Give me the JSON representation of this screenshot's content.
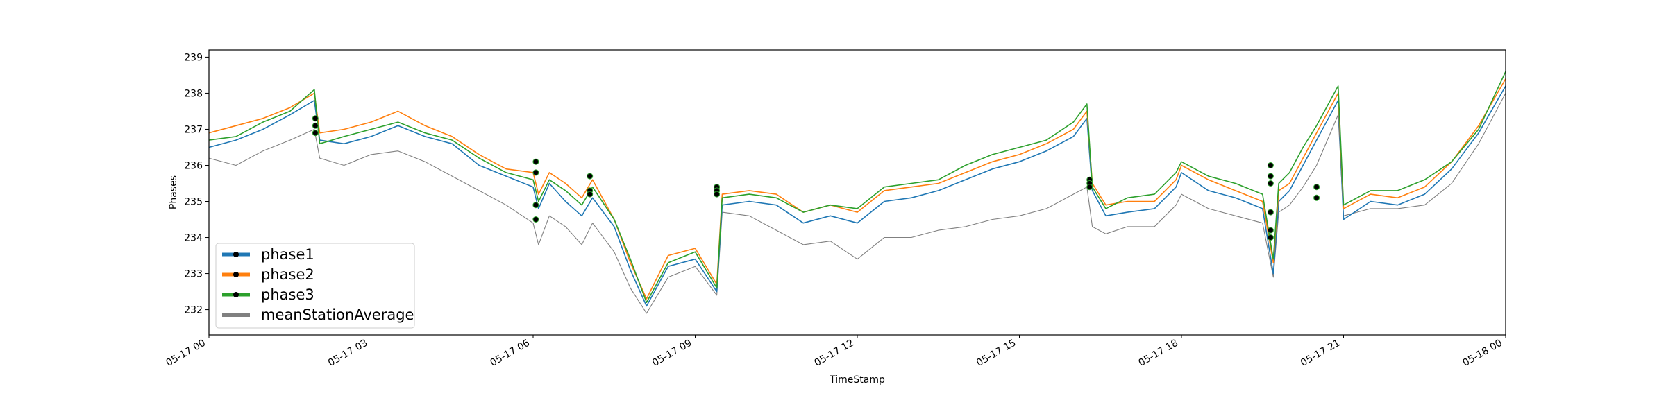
{
  "chart_data": {
    "type": "line",
    "xlabel": "TimeStamp",
    "ylabel": "Phases",
    "xlim": [
      0,
      24
    ],
    "ylim": [
      231.3,
      239.2
    ],
    "x_ticks": [
      {
        "value": 0,
        "label": "05-17 00"
      },
      {
        "value": 3,
        "label": "05-17 03"
      },
      {
        "value": 6,
        "label": "05-17 06"
      },
      {
        "value": 9,
        "label": "05-17 09"
      },
      {
        "value": 12,
        "label": "05-17 12"
      },
      {
        "value": 15,
        "label": "05-17 15"
      },
      {
        "value": 18,
        "label": "05-17 18"
      },
      {
        "value": 21,
        "label": "05-17 21"
      },
      {
        "value": 24,
        "label": "05-18 00"
      }
    ],
    "y_ticks": [
      232,
      233,
      234,
      235,
      236,
      237,
      238,
      239
    ],
    "grid": false,
    "legend_position": "lower-left",
    "colors": {
      "phase1": "#1f77b4",
      "phase2": "#ff7f0e",
      "phase3": "#2ca02c",
      "meanStationAverage": "#808080",
      "marker": "#000000"
    },
    "x": [
      0,
      0.5,
      1,
      1.5,
      1.95,
      2.05,
      2.5,
      3,
      3.5,
      4,
      4.5,
      5,
      5.5,
      6,
      6.1,
      6.3,
      6.6,
      6.9,
      7.1,
      7.5,
      7.8,
      8.1,
      8.5,
      9,
      9.4,
      9.5,
      10,
      10.5,
      11,
      11.5,
      12,
      12.5,
      13,
      13.5,
      14,
      14.5,
      15,
      15.5,
      16,
      16.25,
      16.35,
      16.6,
      17,
      17.5,
      17.9,
      18,
      18.5,
      19,
      19.5,
      19.7,
      19.8,
      20,
      20.25,
      20.5,
      20.9,
      21,
      21.5,
      22,
      22.5,
      23,
      23.5,
      24
    ],
    "series": [
      {
        "name": "phase1",
        "values": [
          236.5,
          236.7,
          237.0,
          237.4,
          237.8,
          236.7,
          236.6,
          236.8,
          237.1,
          236.8,
          236.6,
          236.0,
          235.7,
          235.4,
          234.8,
          235.5,
          235.0,
          234.6,
          235.1,
          234.3,
          233.1,
          232.1,
          233.2,
          233.4,
          232.5,
          234.9,
          235.0,
          234.9,
          234.4,
          234.6,
          234.4,
          235.0,
          235.1,
          235.3,
          235.6,
          235.9,
          236.1,
          236.4,
          236.8,
          237.3,
          235.3,
          234.6,
          234.7,
          234.8,
          235.4,
          235.8,
          235.3,
          235.1,
          234.8,
          233.0,
          235.0,
          235.3,
          236.0,
          236.7,
          237.8,
          234.5,
          235.0,
          234.9,
          235.2,
          235.9,
          236.9,
          238.2
        ]
      },
      {
        "name": "phase2",
        "values": [
          236.9,
          237.1,
          237.3,
          237.6,
          238.0,
          236.9,
          237.0,
          237.2,
          237.5,
          237.1,
          236.8,
          236.3,
          235.9,
          235.8,
          235.2,
          235.8,
          235.5,
          235.1,
          235.6,
          234.5,
          233.3,
          232.3,
          233.5,
          233.7,
          232.7,
          235.2,
          235.3,
          235.2,
          234.7,
          234.9,
          234.7,
          235.3,
          235.4,
          235.5,
          235.8,
          236.1,
          236.3,
          236.6,
          237.0,
          237.5,
          235.5,
          234.9,
          235.0,
          235.0,
          235.6,
          236.0,
          235.6,
          235.3,
          235.0,
          233.3,
          235.3,
          235.5,
          236.2,
          236.9,
          238.0,
          234.8,
          235.2,
          235.1,
          235.4,
          236.1,
          237.1,
          238.4
        ]
      },
      {
        "name": "phase3",
        "values": [
          236.7,
          236.8,
          237.2,
          237.5,
          238.1,
          236.6,
          236.8,
          237.0,
          237.2,
          236.9,
          236.7,
          236.2,
          235.8,
          235.6,
          235.0,
          235.6,
          235.3,
          234.9,
          235.4,
          234.5,
          233.4,
          232.2,
          233.3,
          233.6,
          232.6,
          235.1,
          235.2,
          235.1,
          234.7,
          234.9,
          234.8,
          235.4,
          235.5,
          235.6,
          236.0,
          236.3,
          236.5,
          236.7,
          237.2,
          237.7,
          235.4,
          234.8,
          235.1,
          235.2,
          235.8,
          236.1,
          235.7,
          235.5,
          235.2,
          233.4,
          235.5,
          235.8,
          236.5,
          237.1,
          238.2,
          234.9,
          235.3,
          235.3,
          235.6,
          236.1,
          237.0,
          238.6
        ]
      },
      {
        "name": "meanStationAverage",
        "values": [
          236.2,
          236.0,
          236.4,
          236.7,
          237.0,
          236.2,
          236.0,
          236.3,
          236.4,
          236.1,
          235.7,
          235.3,
          234.9,
          234.4,
          233.8,
          234.6,
          234.3,
          233.8,
          234.4,
          233.6,
          232.6,
          231.9,
          232.9,
          233.2,
          232.4,
          234.7,
          234.6,
          234.2,
          233.8,
          233.9,
          233.4,
          234.0,
          234.0,
          234.2,
          234.3,
          234.5,
          234.6,
          234.8,
          235.2,
          235.4,
          234.3,
          234.1,
          234.3,
          234.3,
          234.9,
          235.2,
          234.8,
          234.6,
          234.4,
          232.9,
          234.7,
          234.9,
          235.4,
          236.0,
          237.4,
          234.6,
          234.8,
          234.8,
          234.9,
          235.5,
          236.6,
          238.0
        ]
      }
    ],
    "markers": [
      {
        "x": 1.97,
        "y": 237.3
      },
      {
        "x": 1.97,
        "y": 237.1
      },
      {
        "x": 1.97,
        "y": 236.9
      },
      {
        "x": 6.05,
        "y": 236.1
      },
      {
        "x": 6.05,
        "y": 235.8
      },
      {
        "x": 6.05,
        "y": 234.9
      },
      {
        "x": 6.05,
        "y": 234.5
      },
      {
        "x": 7.05,
        "y": 235.7
      },
      {
        "x": 7.05,
        "y": 235.3
      },
      {
        "x": 7.05,
        "y": 235.2
      },
      {
        "x": 9.4,
        "y": 235.4
      },
      {
        "x": 9.4,
        "y": 235.3
      },
      {
        "x": 9.4,
        "y": 235.2
      },
      {
        "x": 16.3,
        "y": 235.6
      },
      {
        "x": 16.3,
        "y": 235.5
      },
      {
        "x": 16.3,
        "y": 235.4
      },
      {
        "x": 19.65,
        "y": 236.0
      },
      {
        "x": 19.65,
        "y": 235.7
      },
      {
        "x": 19.65,
        "y": 235.5
      },
      {
        "x": 19.65,
        "y": 234.7
      },
      {
        "x": 19.65,
        "y": 234.2
      },
      {
        "x": 19.65,
        "y": 234.0
      },
      {
        "x": 20.5,
        "y": 235.4
      },
      {
        "x": 20.5,
        "y": 235.1
      }
    ]
  }
}
